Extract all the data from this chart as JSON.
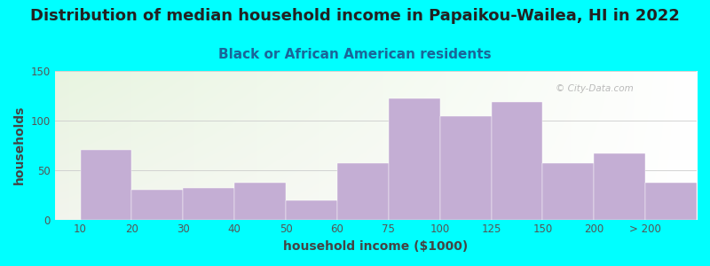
{
  "title": "Distribution of median household income in Papaikou-Wailea, HI in 2022",
  "subtitle": "Black or African American residents",
  "xlabel": "household income ($1000)",
  "ylabel": "households",
  "background_color": "#00FFFF",
  "bar_color": "#C4AED4",
  "watermark": "© City-Data.com",
  "bin_labels": [
    "10",
    "20",
    "30",
    "40",
    "50",
    "60",
    "75",
    "100",
    "125",
    "150",
    "200",
    "> 200"
  ],
  "values": [
    70,
    30,
    32,
    37,
    19,
    57,
    122,
    104,
    119,
    57,
    67,
    37
  ],
  "ylim": [
    0,
    150
  ],
  "yticks": [
    0,
    50,
    100,
    150
  ],
  "title_fontsize": 13,
  "subtitle_fontsize": 11,
  "axis_label_fontsize": 10,
  "tick_fontsize": 8.5
}
